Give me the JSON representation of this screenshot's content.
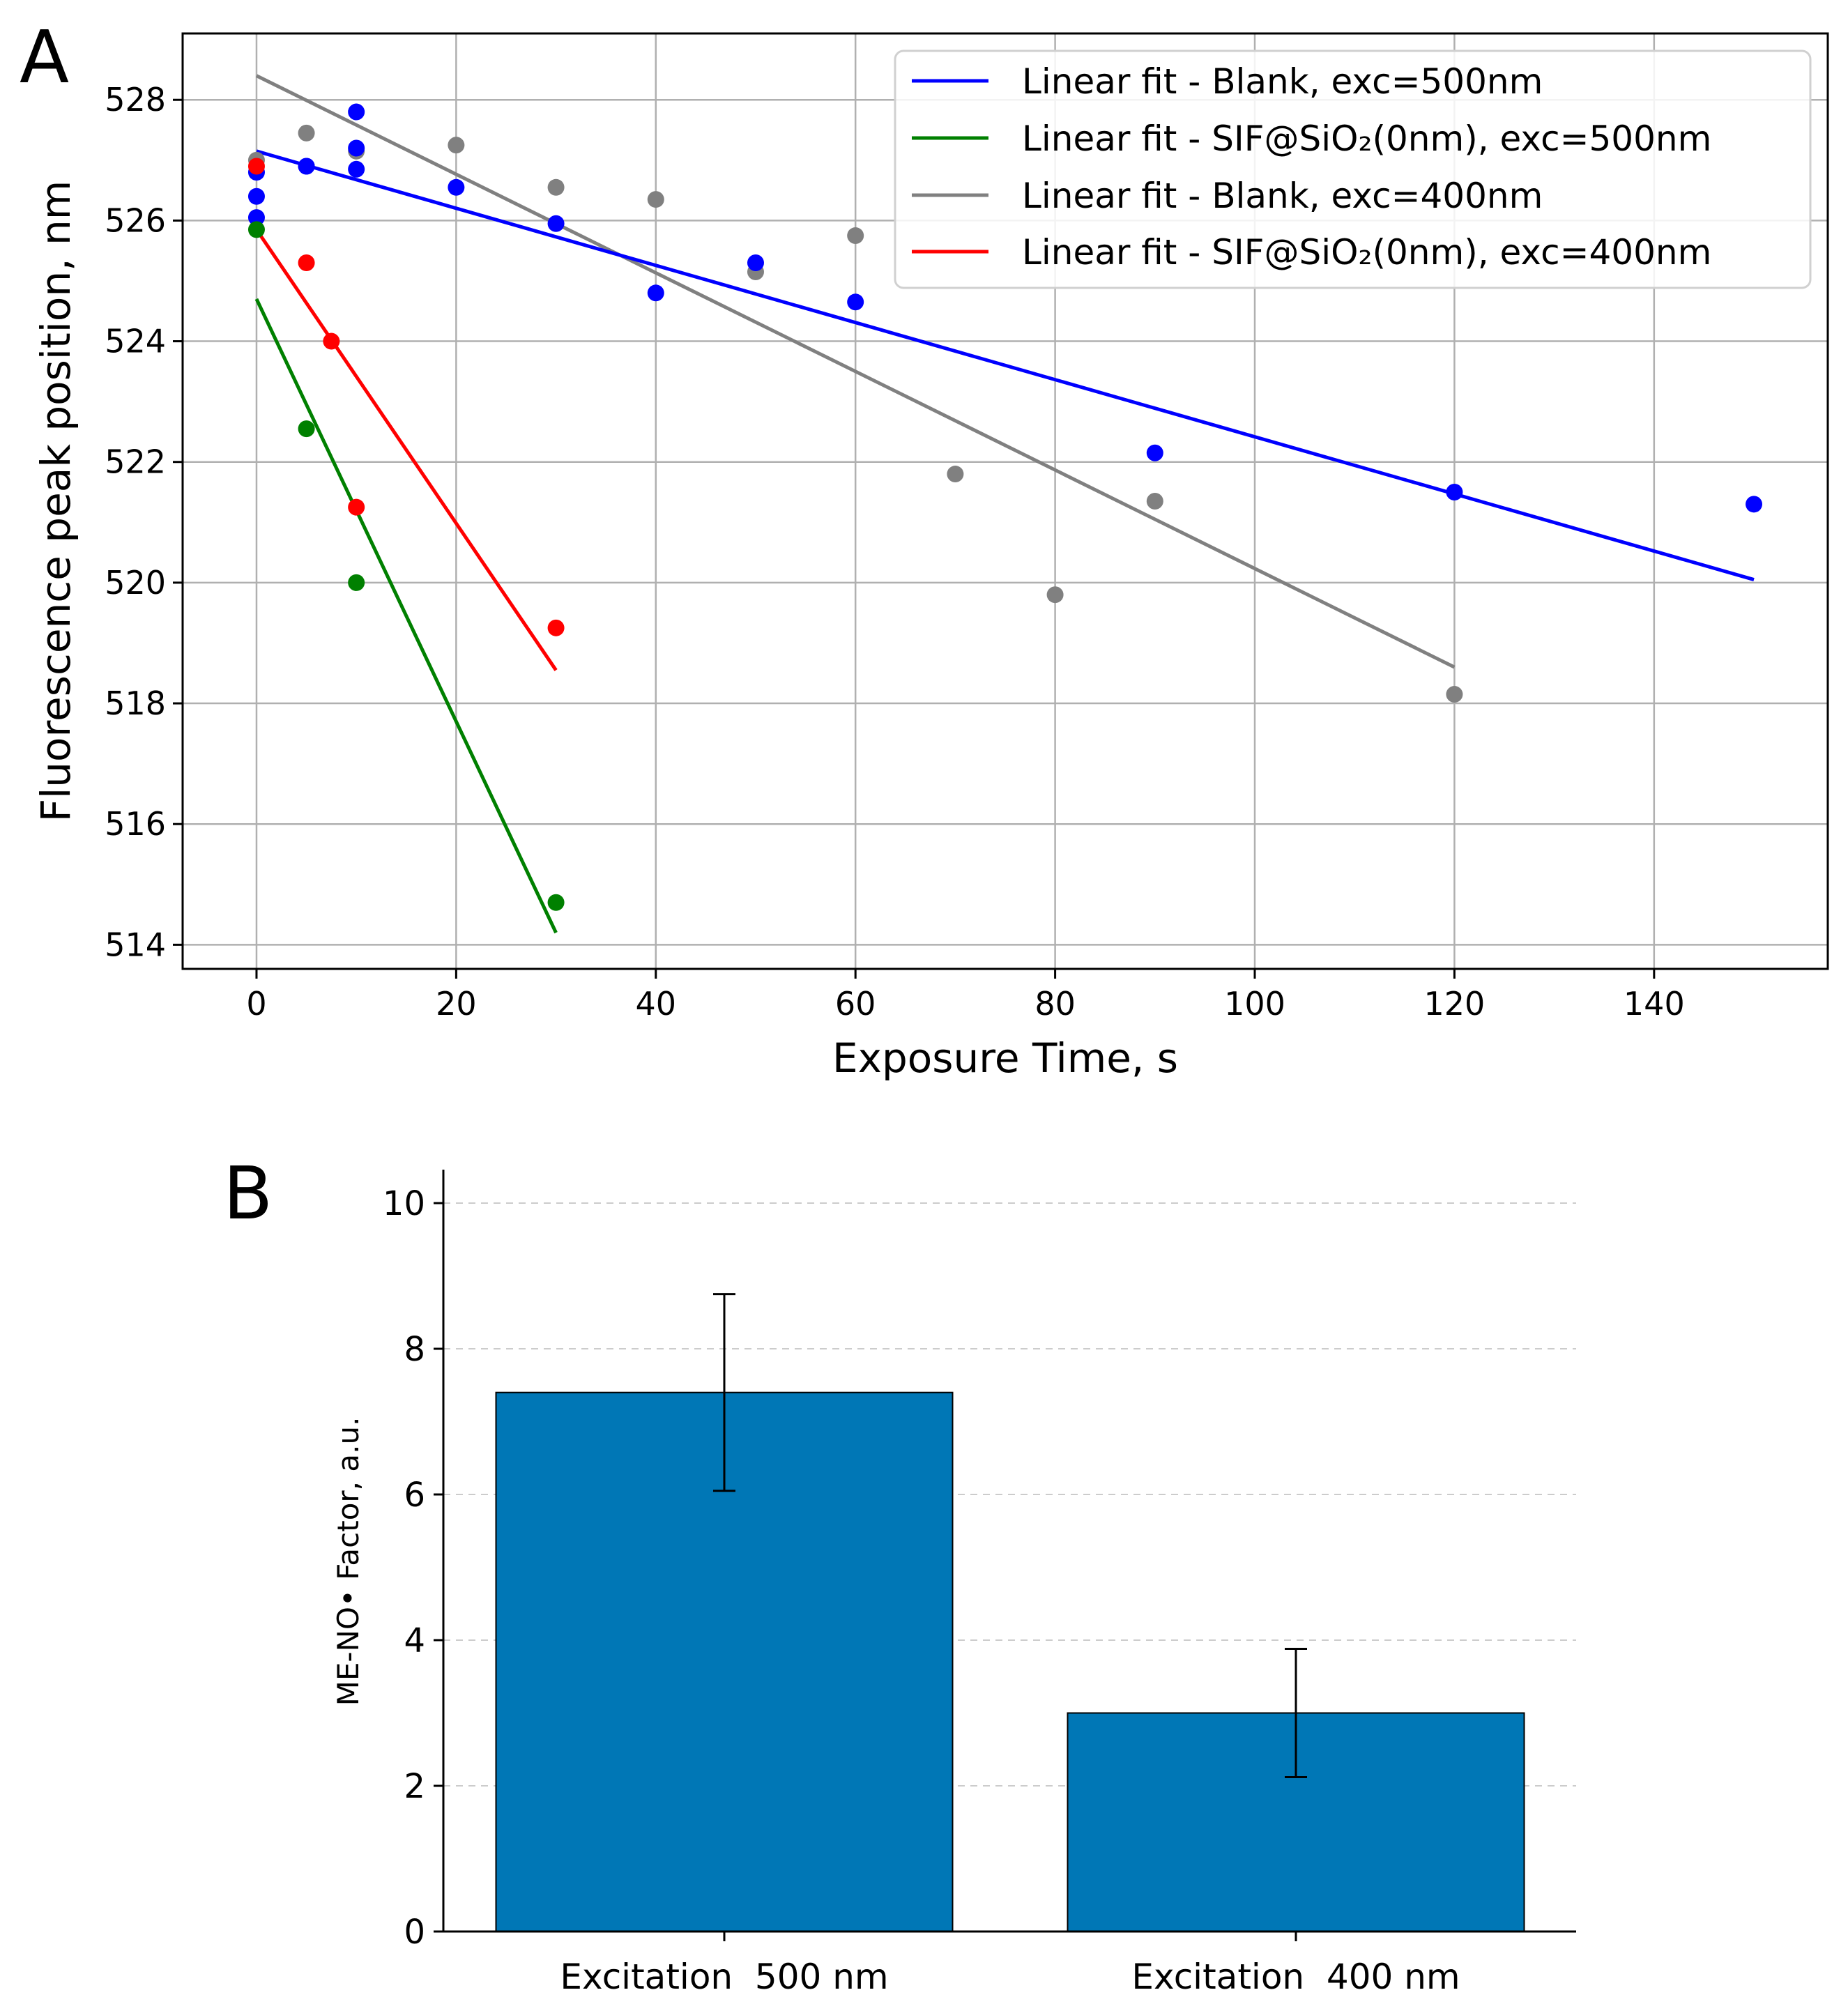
{
  "chart_data": [
    {
      "panel_label": "A",
      "type": "scatter",
      "xlabel": "Exposure Time, s",
      "ylabel": "Fluorescence peak position, nm",
      "xlim": [
        -7.4,
        157.4
      ],
      "ylim": [
        513.6,
        529.1
      ],
      "xticks": [
        0,
        20,
        40,
        60,
        80,
        100,
        120,
        140
      ],
      "yticks": [
        514,
        516,
        518,
        520,
        522,
        524,
        526,
        528
      ],
      "grid": true,
      "legend_position": "top-right",
      "series": [
        {
          "name": "Blank, exc=500nm",
          "color": "#0000ff",
          "points": [
            [
              0,
              526.8
            ],
            [
              0,
              526.4
            ],
            [
              0,
              526.05
            ],
            [
              5,
              526.9
            ],
            [
              5,
              526.9
            ],
            [
              10,
              527.8
            ],
            [
              10,
              527.2
            ],
            [
              10,
              526.85
            ],
            [
              20,
              526.55
            ],
            [
              30,
              525.95
            ],
            [
              40,
              524.8
            ],
            [
              50,
              525.3
            ],
            [
              60,
              524.65
            ],
            [
              90,
              522.15
            ],
            [
              120,
              521.5
            ],
            [
              150,
              521.3
            ]
          ],
          "fit": {
            "label": "Linear fit - Blank, exc=500nm",
            "x": [
              0,
              150
            ],
            "y": [
              527.15,
              520.05
            ]
          }
        },
        {
          "name": "SIF@SiO2(0nm), exc=500nm",
          "color": "#008000",
          "points": [
            [
              0,
              525.85
            ],
            [
              5,
              522.55
            ],
            [
              10,
              520.0
            ],
            [
              30,
              514.7
            ]
          ],
          "fit": {
            "label": "Linear fit - SIF@SiO₂(0nm), exc=500nm",
            "x": [
              0,
              30
            ],
            "y": [
              524.7,
              514.2
            ]
          }
        },
        {
          "name": "Blank, exc=400nm",
          "color": "#808080",
          "points": [
            [
              0,
              527.0
            ],
            [
              5,
              527.45
            ],
            [
              10,
              527.15
            ],
            [
              20,
              527.25
            ],
            [
              30,
              526.55
            ],
            [
              40,
              526.35
            ],
            [
              50,
              525.15
            ],
            [
              60,
              525.75
            ],
            [
              70,
              521.8
            ],
            [
              80,
              519.8
            ],
            [
              90,
              521.35
            ],
            [
              120,
              518.15
            ]
          ],
          "fit": {
            "label": "Linear fit - Blank, exc=400nm",
            "x": [
              0,
              120
            ],
            "y": [
              528.4,
              518.6
            ]
          }
        },
        {
          "name": "SIF@SiO2(0nm), exc=400nm",
          "color": "#ff0000",
          "points": [
            [
              0,
              526.9
            ],
            [
              5,
              525.3
            ],
            [
              7.5,
              524.0
            ],
            [
              10,
              521.25
            ],
            [
              30,
              519.25
            ]
          ],
          "fit": {
            "label": "Linear fit - SIF@SiO₂(0nm), exc=400nm",
            "x": [
              0,
              30
            ],
            "y": [
              525.85,
              518.55
            ]
          }
        }
      ]
    },
    {
      "panel_label": "B",
      "type": "bar",
      "categories": [
        "Excitation  500 nm",
        "Excitation  400 nm"
      ],
      "values": [
        7.4,
        3.0
      ],
      "errors": [
        1.35,
        0.88
      ],
      "ylabel": "ME-NO• Factor, a.u.",
      "xlabel": "",
      "ylim": [
        0,
        10.5
      ],
      "yticks": [
        0,
        2,
        4,
        6,
        8,
        10
      ],
      "bar_color": "#0077b6",
      "grid": "horizontal dashed"
    }
  ]
}
